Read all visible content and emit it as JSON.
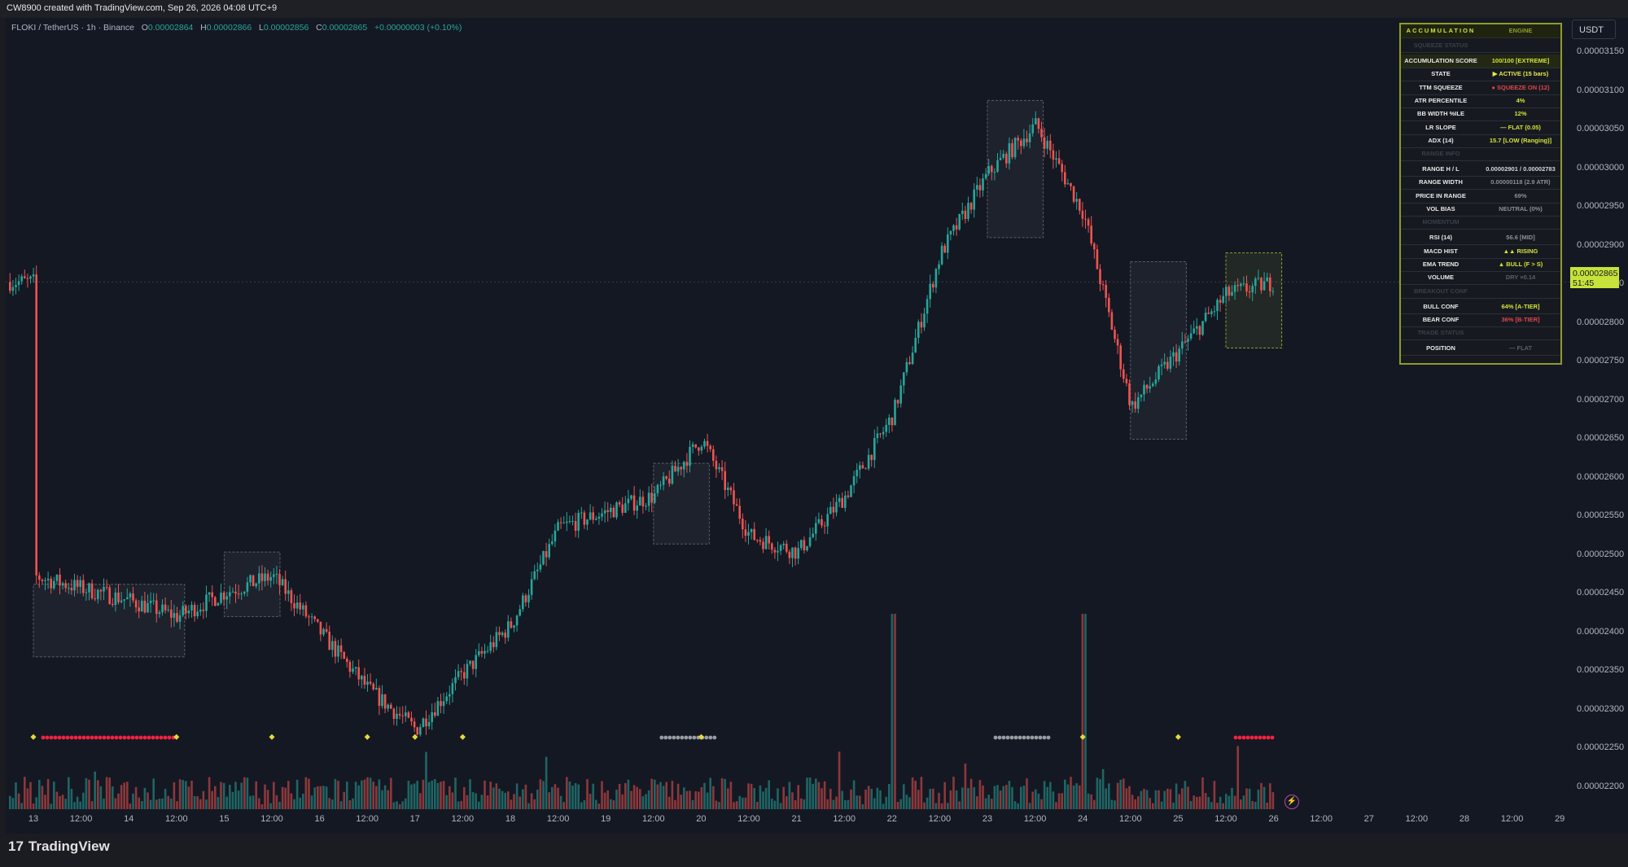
{
  "header": {
    "credit": "CW8900 created with TradingView.com, Sep 26, 2026 04:08 UTC+9"
  },
  "legend": {
    "symbol": "FLOKI / TetherUS · 1h · Binance",
    "open_label": "O",
    "open": "0.00002864",
    "high_label": "H",
    "high": "0.00002866",
    "low_label": "L",
    "low": "0.00002856",
    "close_label": "C",
    "close": "0.00002865",
    "change": "+0.00000003 (+0.10%)"
  },
  "scale": {
    "currency": "USDT",
    "labels": [
      "0.00003150",
      "0.00003100",
      "0.00003050",
      "0.00003000",
      "0.00002950",
      "0.00002900",
      "0.00002850",
      "0.00002800",
      "0.00002750",
      "0.00002700",
      "0.00002650",
      "0.00002600",
      "0.00002550",
      "0.00002500",
      "0.00002450",
      "0.00002400",
      "0.00002350",
      "0.00002300",
      "0.00002250",
      "0.00002200"
    ],
    "last_price": "0.00002865",
    "countdown": "51:45"
  },
  "time_axis": [
    "13",
    "12:00",
    "14",
    "12:00",
    "15",
    "12:00",
    "16",
    "12:00",
    "17",
    "12:00",
    "18",
    "12:00",
    "19",
    "12:00",
    "20",
    "12:00",
    "21",
    "12:00",
    "22",
    "12:00",
    "23",
    "12:00",
    "24",
    "12:00",
    "25",
    "12:00",
    "26",
    "12:00",
    "27",
    "12:00",
    "28",
    "12:00",
    "29"
  ],
  "footer": {
    "brand": "TradingView",
    "brand_icon": "tradingview-logo-icon",
    "bolt_icon": "lightning-icon"
  },
  "panel": {
    "title": "ACCUMULATION",
    "engine": "ENGINE",
    "rows": [
      {
        "key": "SQUEEZE STATUS",
        "value": "",
        "section": true
      },
      {
        "key": "ACCUMULATION SCORE",
        "value": "100/100 [EXTREME]",
        "color": "#d4e23a",
        "highlight": true
      },
      {
        "key": "STATE",
        "value": "▶ ACTIVE (15 bars)",
        "color": "#e8e84a"
      },
      {
        "key": "TTM SQUEEZE",
        "value": "● SQUEEZE ON (12)",
        "color": "#e0454d"
      },
      {
        "key": "ATR PERCENTILE",
        "value": "4%",
        "color": "#d4e23a"
      },
      {
        "key": "BB WIDTH %ILE",
        "value": "12%",
        "color": "#d4e23a"
      },
      {
        "key": "LR SLOPE",
        "value": "— FLAT (0.05)",
        "color": "#d4e23a"
      },
      {
        "key": "ADX (14)",
        "value": "15.7 [LOW (Ranging)]",
        "color": "#d4e23a"
      },
      {
        "key": "RANGE INFO",
        "value": "",
        "section": true
      },
      {
        "key": "RANGE H / L",
        "value": "0.00002901 / 0.00002783",
        "color": "#d1d4dc"
      },
      {
        "key": "RANGE WIDTH",
        "value": "0.00000118 (2.9 ATR)",
        "color": "#8a8e96"
      },
      {
        "key": "PRICE IN RANGE",
        "value": "69%",
        "color": "#8a8e96"
      },
      {
        "key": "VOL BIAS",
        "value": "NEUTRAL (0%)",
        "color": "#8a8e96"
      },
      {
        "key": "MOMENTUM",
        "value": "",
        "section": true
      },
      {
        "key": "RSI (14)",
        "value": "56.6 [MID]",
        "color": "#8a8e96"
      },
      {
        "key": "MACD HIST",
        "value": "▲▲ RISING",
        "color": "#d4e23a"
      },
      {
        "key": "EMA TREND",
        "value": "▲ BULL (F > S)",
        "color": "#d4e23a"
      },
      {
        "key": "VOLUME",
        "value": "DRY ×0.14",
        "color": "#5a5e66"
      },
      {
        "key": "BREAKOUT CONF",
        "value": "",
        "section": true
      },
      {
        "key": "BULL CONF",
        "value": "64% [A-TIER]",
        "color": "#d4e23a"
      },
      {
        "key": "BEAR CONF",
        "value": "36% [B-TIER]",
        "color": "#e0454d"
      },
      {
        "key": "TRADE STATUS",
        "value": "",
        "section": true
      },
      {
        "key": "POSITION",
        "value": "— FLAT",
        "color": "#5a5e66"
      }
    ]
  },
  "colors": {
    "up": "#26a69a",
    "down": "#ef5350",
    "accent": "#c7e23a",
    "squeeze": "#f0233f"
  },
  "chart_data": {
    "type": "candlestick",
    "timeframe": "1h",
    "ylim": [
      2.2e-05,
      3.18e-05
    ],
    "close_path": [
      [
        "13",
        2.5e-05
      ],
      [
        "14",
        2.47e-05
      ],
      [
        "14 12:00",
        2.45e-05
      ],
      [
        "15",
        2.48e-05
      ],
      [
        "15 12:00",
        2.5e-05
      ],
      [
        "16",
        2.43e-05
      ],
      [
        "16 12:00",
        2.36e-05
      ],
      [
        "17",
        2.31e-05
      ],
      [
        "17 12:00",
        2.38e-05
      ],
      [
        "18",
        2.44e-05
      ],
      [
        "18 12:00",
        2.56e-05
      ],
      [
        "19",
        2.58e-05
      ],
      [
        "19 12:00",
        2.6e-05
      ],
      [
        "20",
        2.67e-05
      ],
      [
        "20 12:00",
        2.55e-05
      ],
      [
        "21",
        2.53e-05
      ],
      [
        "21 12:00",
        2.6e-05
      ],
      [
        "22",
        2.7e-05
      ],
      [
        "22 12:00",
        2.9e-05
      ],
      [
        "23",
        3e-05
      ],
      [
        "23 12:00",
        3.06e-05
      ],
      [
        "24",
        2.95e-05
      ],
      [
        "24 12:00",
        2.71e-05
      ],
      [
        "25",
        2.78e-05
      ],
      [
        "25 12:00",
        2.85e-05
      ],
      [
        "26",
        2.865e-05
      ]
    ],
    "last_close": 2.865e-05,
    "range_boxes": [
      {
        "from": "13",
        "to": "14 12:00",
        "high": 2.49e-05,
        "low": 2.4e-05
      },
      {
        "from": "15",
        "to": "15 12:00",
        "high": 2.53e-05,
        "low": 2.45e-05
      },
      {
        "from": "19 12:00",
        "to": "20",
        "high": 2.64e-05,
        "low": 2.54e-05
      },
      {
        "from": "23",
        "to": "23 12:00",
        "high": 3.09e-05,
        "low": 2.92e-05
      },
      {
        "from": "24 12:00",
        "to": "25",
        "high": 2.89e-05,
        "low": 2.67e-05
      },
      {
        "from": "25 12:00",
        "to": "26",
        "high": 2.901e-05,
        "low": 2.783e-05
      }
    ],
    "volume_spikes": [
      {
        "at": "22",
        "level": "very high"
      },
      {
        "at": "24",
        "level": "very high"
      }
    ]
  }
}
